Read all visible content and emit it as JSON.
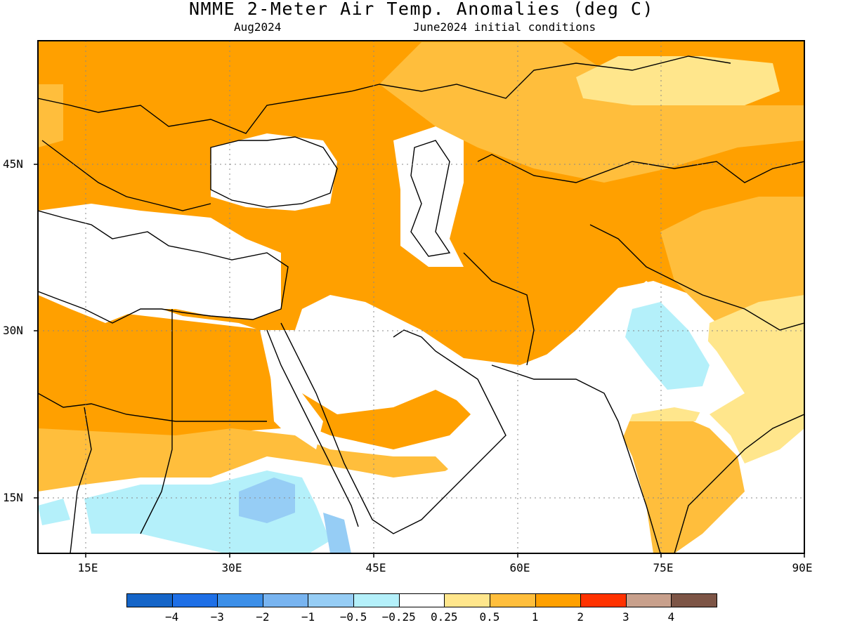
{
  "header": {
    "title": "NMME 2-Meter Air Temp. Anomalies (deg C)",
    "month": "Aug2024",
    "conditions": "June2024 initial conditions"
  },
  "axes": {
    "x_ticks": [
      "15E",
      "30E",
      "45E",
      "60E",
      "75E",
      "90E"
    ],
    "y_ticks": [
      "45N",
      "30N",
      "15N"
    ]
  },
  "colorbar": {
    "labels": [
      "−4",
      "−3",
      "−2",
      "−1",
      "−0.5",
      "−0.25",
      "0.25",
      "0.5",
      "1",
      "2",
      "3",
      "4"
    ],
    "colors": [
      "#1565c8",
      "#1e6fe6",
      "#3c8fe8",
      "#78b4f0",
      "#96cdf5",
      "#b4f0fa",
      "#ffffff",
      "#ffe68c",
      "#ffbe3c",
      "#ffa000",
      "#ff3200",
      "#c8a08c",
      "#7d5546"
    ]
  },
  "map": {
    "region": "Middle East / South Asia",
    "grid": "dotted"
  }
}
